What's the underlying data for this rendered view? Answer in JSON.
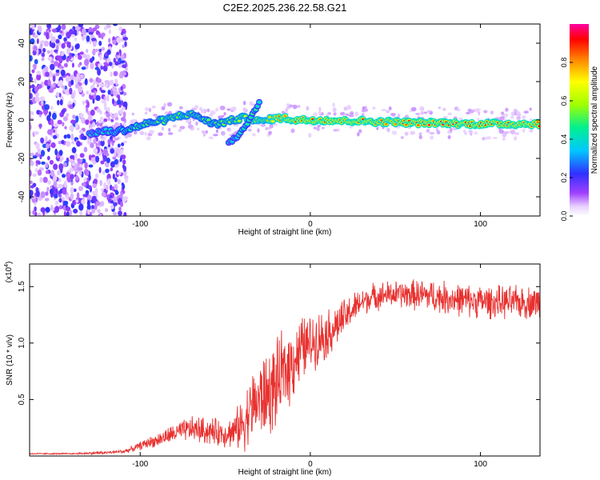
{
  "figure_title": "C2E2.2025.236.22.58.G21",
  "colors": {
    "snr_line": "#e8312f",
    "track_core": "#e8232f",
    "track_edge": "#18c8ff",
    "noise_dots": "#7a3cff",
    "frame": "#000000"
  },
  "chart_data": [
    {
      "type": "heatmap",
      "title": "C2E2.2025.236.22.58.G21",
      "xlabel": "Height of straight line (km)",
      "ylabel": "Frequency (Hz)",
      "xlim": [
        -165,
        135
      ],
      "ylim": [
        -50,
        50
      ],
      "x_ticks": [
        -100,
        0,
        100
      ],
      "x_tick_labels": [
        "-100",
        "0",
        "100"
      ],
      "y_ticks": [
        -40,
        -20,
        0,
        20,
        40
      ],
      "y_tick_labels": [
        "-40",
        "-20",
        "0",
        "20",
        "40"
      ],
      "grid": false,
      "colorbar": {
        "label": "Normalized spectral amplitude",
        "range": [
          0,
          1
        ],
        "ticks": [
          0.0,
          0.2,
          0.4,
          0.6,
          0.8
        ],
        "tick_labels": [
          "0.0",
          "0.2",
          "0.4",
          "0.6",
          "0.8"
        ],
        "colormap": [
          "#ffffff",
          "#e8d0ff",
          "#a040ff",
          "#3030ff",
          "#00c8ff",
          "#00f090",
          "#a0ff00",
          "#ffff00",
          "#ff8000",
          "#ff0000",
          "#ff00a0"
        ]
      },
      "noise_region_x": [
        -165,
        -108
      ],
      "track": {
        "x": [
          -130,
          -122,
          -115,
          -108,
          -100,
          -92,
          -85,
          -78,
          -72,
          -66,
          -60,
          -55,
          -50,
          -45,
          -40,
          -35,
          -30,
          -25,
          -20,
          -15,
          -10,
          -5,
          0,
          10,
          20,
          30,
          40,
          50,
          60,
          70,
          80,
          90,
          100,
          110,
          120,
          135
        ],
        "y": [
          -7,
          -6,
          -6,
          -5,
          -3,
          -1,
          0,
          2,
          3,
          2,
          -1,
          -2,
          -1,
          0,
          1,
          1,
          -1,
          0,
          1,
          1,
          0,
          0,
          0,
          0,
          -0.5,
          -0.5,
          -1,
          -1,
          -1.5,
          -1.5,
          -1.5,
          -2,
          -2,
          -2,
          -2,
          -2
        ],
        "amplitude": [
          0.4,
          0.45,
          0.45,
          0.5,
          0.55,
          0.55,
          0.6,
          0.6,
          0.6,
          0.55,
          0.55,
          0.55,
          0.6,
          0.6,
          0.65,
          0.65,
          0.7,
          0.7,
          0.8,
          0.85,
          0.85,
          0.9,
          0.9,
          0.9,
          0.9,
          0.9,
          0.85,
          0.85,
          0.9,
          0.9,
          0.9,
          0.9,
          0.9,
          0.9,
          0.9,
          0.9
        ]
      },
      "secondary_track": {
        "x": [
          -48,
          -42,
          -38,
          -34,
          -30
        ],
        "y": [
          -12,
          -8,
          -3,
          3,
          9
        ],
        "amplitude": [
          0.4,
          0.45,
          0.5,
          0.5,
          0.45
        ]
      }
    },
    {
      "type": "line",
      "title": "",
      "xlabel": "Height of straight line (km)",
      "ylabel": "SNR (10 * v/v)",
      "multiplier_label": "(x10",
      "multiplier_exponent": "4",
      "xlim": [
        -165,
        135
      ],
      "ylim": [
        0,
        1.7
      ],
      "x_ticks": [
        -100,
        0,
        100
      ],
      "x_tick_labels": [
        "-100",
        "0",
        "100"
      ],
      "y_ticks": [
        0.5,
        1.0,
        1.5
      ],
      "y_tick_labels": [
        "0.5",
        "1.0",
        "1.5"
      ],
      "grid": false,
      "series": [
        {
          "x": [
            -165,
            -150,
            -140,
            -130,
            -120,
            -110,
            -105,
            -100,
            -95,
            -90,
            -85,
            -80,
            -75,
            -70,
            -65,
            -60,
            -55,
            -50,
            -45,
            -40,
            -35,
            -30,
            -25,
            -20,
            -15,
            -10,
            -5,
            0,
            5,
            10,
            15,
            20,
            25,
            30,
            35,
            40,
            45,
            50,
            60,
            70,
            80,
            90,
            100,
            110,
            120,
            135
          ],
          "y": [
            0.02,
            0.02,
            0.02,
            0.025,
            0.03,
            0.04,
            0.06,
            0.09,
            0.12,
            0.14,
            0.17,
            0.2,
            0.22,
            0.24,
            0.23,
            0.22,
            0.21,
            0.2,
            0.22,
            0.28,
            0.42,
            0.5,
            0.55,
            0.62,
            0.75,
            0.85,
            0.95,
            1.0,
            1.05,
            1.08,
            1.15,
            1.22,
            1.3,
            1.36,
            1.4,
            1.42,
            1.43,
            1.43,
            1.43,
            1.42,
            1.4,
            1.38,
            1.37,
            1.36,
            1.36,
            1.36
          ],
          "spread": [
            0.005,
            0.005,
            0.005,
            0.01,
            0.01,
            0.015,
            0.02,
            0.03,
            0.04,
            0.05,
            0.06,
            0.07,
            0.08,
            0.09,
            0.1,
            0.1,
            0.1,
            0.1,
            0.12,
            0.2,
            0.25,
            0.3,
            0.32,
            0.32,
            0.3,
            0.28,
            0.25,
            0.2,
            0.2,
            0.18,
            0.16,
            0.14,
            0.12,
            0.1,
            0.1,
            0.1,
            0.1,
            0.1,
            0.11,
            0.12,
            0.12,
            0.12,
            0.12,
            0.12,
            0.12,
            0.12
          ]
        }
      ]
    }
  ]
}
